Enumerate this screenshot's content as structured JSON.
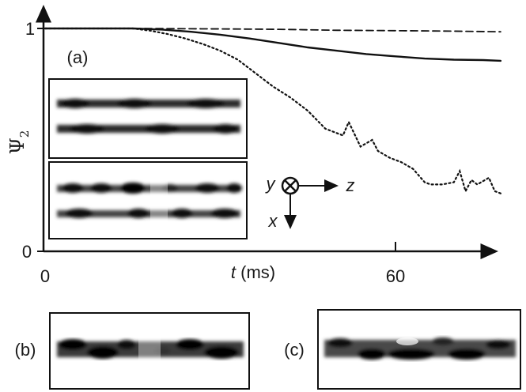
{
  "chart_data": {
    "type": "line",
    "panel_label": "(a)",
    "xlabel_var": "t",
    "xlabel_unit": " (ms)",
    "ylabel_symbol": "Ψ",
    "ylabel_sub": "2",
    "xlim": [
      0,
      78
    ],
    "ylim": [
      0,
      1
    ],
    "x_ticks": [
      {
        "value": 0,
        "label": "0"
      },
      {
        "value": 60,
        "label": "60"
      }
    ],
    "y_ticks": [
      {
        "value": 0,
        "label": "0"
      },
      {
        "value": 1,
        "label": "1"
      }
    ],
    "series": [
      {
        "style": "dashed",
        "x": [
          0,
          15,
          30,
          40,
          50,
          60,
          70,
          78
        ],
        "y": [
          1.0,
          1.0,
          0.998,
          0.996,
          0.992,
          0.99,
          0.988,
          0.985
        ]
      },
      {
        "style": "solid",
        "x": [
          0,
          15,
          20,
          25,
          30,
          35,
          40,
          45,
          50,
          55,
          60,
          65,
          70,
          75,
          78
        ],
        "y": [
          1.0,
          1.0,
          0.995,
          0.985,
          0.972,
          0.955,
          0.935,
          0.915,
          0.9,
          0.885,
          0.875,
          0.865,
          0.86,
          0.858,
          0.855
        ]
      },
      {
        "style": "dotted",
        "x": [
          0,
          15,
          18,
          21,
          24,
          27,
          30,
          33,
          36,
          39,
          42,
          45,
          48,
          51,
          52,
          54,
          56,
          57,
          59,
          61,
          63,
          65,
          66,
          68,
          70,
          71,
          72,
          73,
          74,
          76,
          77,
          78
        ],
        "y": [
          1.0,
          1.0,
          0.99,
          0.975,
          0.955,
          0.93,
          0.9,
          0.86,
          0.8,
          0.74,
          0.69,
          0.63,
          0.55,
          0.52,
          0.58,
          0.47,
          0.5,
          0.45,
          0.42,
          0.4,
          0.37,
          0.31,
          0.3,
          0.3,
          0.31,
          0.36,
          0.27,
          0.32,
          0.3,
          0.33,
          0.27,
          0.26
        ]
      }
    ]
  },
  "axes_legend": {
    "y": "y",
    "z": "z",
    "x": "x"
  },
  "insets": [
    {
      "name": "inset-a-top"
    },
    {
      "name": "inset-a-bottom"
    },
    {
      "name": "image-b",
      "label": "(b)"
    },
    {
      "name": "image-c",
      "label": "(c)"
    }
  ]
}
